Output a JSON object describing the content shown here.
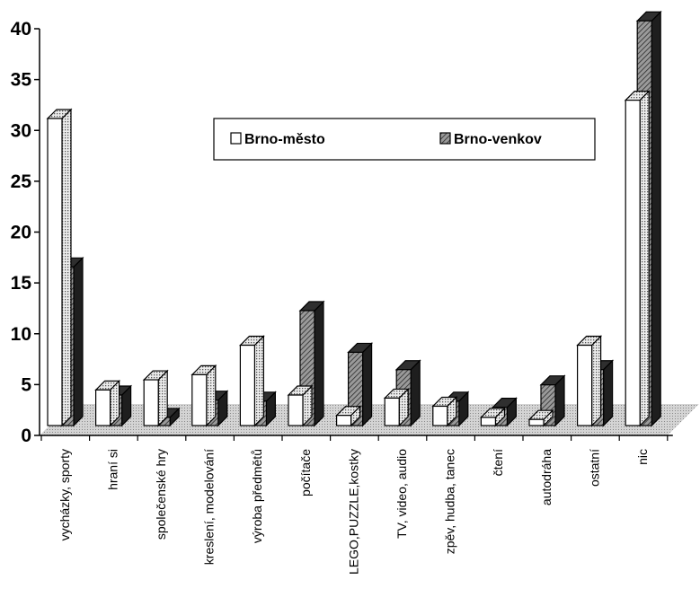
{
  "chart_data": {
    "type": "bar",
    "categories": [
      "vycházky, sporty",
      "hraní si",
      "společenské hry",
      "kreslení, modelování",
      "výroba předmětů",
      "počítače",
      "LEGO,PUZZLE,kostky",
      "TV, video, audio",
      "zpěv, hudba, tanec",
      "čtení",
      "autodráha",
      "ostatní",
      "nic"
    ],
    "series": [
      {
        "name": "Brno-město",
        "values": [
          30.2,
          3.5,
          4.5,
          5.0,
          7.9,
          3.0,
          1.0,
          2.7,
          1.9,
          0.8,
          0.6,
          7.9,
          32.0
        ]
      },
      {
        "name": "Brno-venkov",
        "values": [
          15.6,
          3.0,
          0.8,
          2.5,
          2.4,
          11.3,
          7.2,
          5.5,
          2.4,
          1.8,
          4.0,
          5.5,
          39.8
        ]
      }
    ],
    "title": "",
    "xlabel": "",
    "ylabel": "",
    "ylim": [
      0,
      40
    ],
    "yticks": [
      0,
      5,
      10,
      15,
      20,
      25,
      30,
      35,
      40
    ],
    "grid": false,
    "legend": "top-center",
    "colors": {
      "series1": "#ffffff",
      "series2": "#8a8a8a",
      "floor": "#c8c8c8",
      "ink": "#000000"
    }
  }
}
